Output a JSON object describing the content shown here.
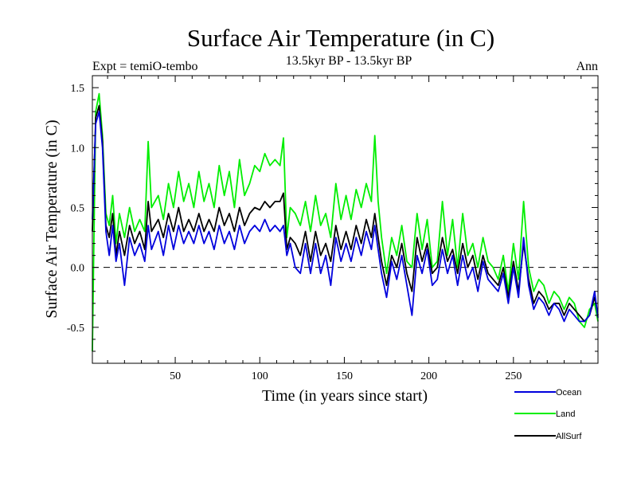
{
  "chart_data": {
    "type": "line",
    "title": "Surface Air Temperature (in C)",
    "subtitle": "13.5kyr BP - 13.5kyr BP",
    "left_note": "Expt = temiO-tembo",
    "right_note": "Ann",
    "xlabel": "Time (in years since start)",
    "ylabel": "Surface Air Temperature (in C)",
    "xlim": [
      1,
      300
    ],
    "ylim": [
      -0.8,
      1.6
    ],
    "xticks": [
      50,
      100,
      150,
      200,
      250
    ],
    "yticks": [
      -0.5,
      0.0,
      0.5,
      1.0,
      1.5
    ],
    "ytick_labels": [
      "-0.5",
      "0.0",
      "0.5",
      "1.0",
      "1.5"
    ],
    "zero_line": 0,
    "legend_position": "bottom-right",
    "series": [
      {
        "name": "Land",
        "color": "#00ee00",
        "x": [
          1,
          3,
          5,
          7,
          9,
          11,
          13,
          15,
          17,
          20,
          23,
          26,
          29,
          32,
          34,
          36,
          40,
          43,
          46,
          49,
          52,
          55,
          58,
          61,
          64,
          67,
          70,
          73,
          76,
          79,
          82,
          85,
          88,
          91,
          94,
          97,
          100,
          103,
          106,
          109,
          112,
          114,
          116,
          118,
          121,
          124,
          127,
          130,
          133,
          136,
          139,
          142,
          145,
          148,
          151,
          154,
          157,
          160,
          163,
          166,
          168,
          170,
          172,
          175,
          178,
          181,
          184,
          187,
          190,
          193,
          196,
          199,
          202,
          205,
          208,
          211,
          214,
          217,
          220,
          223,
          226,
          229,
          232,
          235,
          238,
          241,
          244,
          247,
          250,
          253,
          256,
          259,
          262,
          265,
          268,
          271,
          274,
          277,
          280,
          283,
          286,
          289,
          292,
          295,
          298,
          300
        ],
        "y": [
          -0.7,
          1.3,
          1.45,
          1.1,
          0.45,
          0.35,
          0.6,
          0.2,
          0.45,
          0.25,
          0.5,
          0.3,
          0.4,
          0.3,
          1.05,
          0.5,
          0.6,
          0.4,
          0.7,
          0.5,
          0.8,
          0.55,
          0.7,
          0.5,
          0.8,
          0.55,
          0.7,
          0.5,
          0.85,
          0.6,
          0.8,
          0.5,
          0.9,
          0.6,
          0.7,
          0.85,
          0.8,
          0.95,
          0.85,
          0.9,
          0.85,
          1.08,
          0.25,
          0.5,
          0.45,
          0.35,
          0.55,
          0.3,
          0.6,
          0.35,
          0.45,
          0.25,
          0.7,
          0.4,
          0.6,
          0.4,
          0.65,
          0.5,
          0.7,
          0.55,
          1.1,
          0.55,
          0.25,
          -0.05,
          0.25,
          0.1,
          0.35,
          0.05,
          0.0,
          0.45,
          0.15,
          0.4,
          0.0,
          0.05,
          0.55,
          0.1,
          0.4,
          0.0,
          0.45,
          0.1,
          0.2,
          0.0,
          0.25,
          0.05,
          0.0,
          -0.1,
          0.1,
          -0.2,
          0.2,
          -0.1,
          0.55,
          0.0,
          -0.2,
          -0.1,
          -0.15,
          -0.3,
          -0.2,
          -0.25,
          -0.35,
          -0.25,
          -0.3,
          -0.45,
          -0.5,
          -0.35,
          -0.3,
          -0.45
        ]
      },
      {
        "name": "AllSurf",
        "color": "#000000",
        "x": [
          1,
          3,
          5,
          7,
          9,
          11,
          13,
          15,
          17,
          20,
          23,
          26,
          29,
          32,
          34,
          36,
          40,
          43,
          46,
          49,
          52,
          55,
          58,
          61,
          64,
          67,
          70,
          73,
          76,
          79,
          82,
          85,
          88,
          91,
          94,
          97,
          100,
          103,
          106,
          109,
          112,
          114,
          116,
          118,
          121,
          124,
          127,
          130,
          133,
          136,
          139,
          142,
          145,
          148,
          151,
          154,
          157,
          160,
          163,
          166,
          168,
          170,
          172,
          175,
          178,
          181,
          184,
          187,
          190,
          193,
          196,
          199,
          202,
          205,
          208,
          211,
          214,
          217,
          220,
          223,
          226,
          229,
          232,
          235,
          238,
          241,
          244,
          247,
          250,
          253,
          256,
          259,
          262,
          265,
          268,
          271,
          274,
          277,
          280,
          283,
          286,
          289,
          292,
          295,
          298,
          300
        ],
        "y": [
          0.3,
          1.25,
          1.35,
          1.05,
          0.35,
          0.25,
          0.45,
          0.1,
          0.3,
          0.1,
          0.35,
          0.2,
          0.3,
          0.15,
          0.55,
          0.3,
          0.4,
          0.25,
          0.45,
          0.3,
          0.5,
          0.3,
          0.4,
          0.3,
          0.45,
          0.3,
          0.4,
          0.3,
          0.5,
          0.35,
          0.45,
          0.3,
          0.5,
          0.35,
          0.45,
          0.5,
          0.48,
          0.55,
          0.5,
          0.55,
          0.55,
          0.62,
          0.15,
          0.25,
          0.2,
          0.1,
          0.3,
          0.05,
          0.3,
          0.1,
          0.2,
          0.05,
          0.35,
          0.15,
          0.3,
          0.15,
          0.35,
          0.2,
          0.4,
          0.25,
          0.45,
          0.25,
          0.05,
          -0.15,
          0.1,
          0.0,
          0.2,
          -0.05,
          -0.2,
          0.25,
          0.05,
          0.2,
          -0.05,
          0.0,
          0.25,
          0.05,
          0.15,
          -0.05,
          0.2,
          0.0,
          0.1,
          -0.1,
          0.1,
          -0.05,
          -0.1,
          -0.15,
          0.0,
          -0.25,
          0.05,
          -0.2,
          0.2,
          -0.1,
          -0.3,
          -0.2,
          -0.25,
          -0.35,
          -0.3,
          -0.3,
          -0.4,
          -0.3,
          -0.35,
          -0.4,
          -0.45,
          -0.4,
          -0.25,
          -0.4
        ]
      },
      {
        "name": "Ocean",
        "color": "#0000dd",
        "x": [
          1,
          3,
          5,
          7,
          9,
          11,
          13,
          15,
          17,
          20,
          23,
          26,
          29,
          32,
          34,
          36,
          40,
          43,
          46,
          49,
          52,
          55,
          58,
          61,
          64,
          67,
          70,
          73,
          76,
          79,
          82,
          85,
          88,
          91,
          94,
          97,
          100,
          103,
          106,
          109,
          112,
          114,
          116,
          118,
          121,
          124,
          127,
          130,
          133,
          136,
          139,
          142,
          145,
          148,
          151,
          154,
          157,
          160,
          163,
          166,
          168,
          170,
          172,
          175,
          178,
          181,
          184,
          187,
          190,
          193,
          196,
          199,
          202,
          205,
          208,
          211,
          214,
          217,
          220,
          223,
          226,
          229,
          232,
          235,
          238,
          241,
          244,
          247,
          250,
          253,
          256,
          259,
          262,
          265,
          268,
          271,
          274,
          277,
          280,
          283,
          286,
          289,
          292,
          295,
          298,
          300
        ],
        "y": [
          0.4,
          1.2,
          1.3,
          1.0,
          0.3,
          0.1,
          0.35,
          0.05,
          0.2,
          -0.15,
          0.25,
          0.1,
          0.2,
          0.05,
          0.35,
          0.15,
          0.3,
          0.1,
          0.35,
          0.15,
          0.35,
          0.2,
          0.3,
          0.2,
          0.35,
          0.2,
          0.3,
          0.15,
          0.35,
          0.2,
          0.3,
          0.15,
          0.35,
          0.2,
          0.3,
          0.35,
          0.3,
          0.4,
          0.3,
          0.35,
          0.3,
          0.35,
          0.1,
          0.2,
          0.0,
          -0.05,
          0.2,
          -0.05,
          0.2,
          -0.05,
          0.1,
          -0.15,
          0.25,
          0.05,
          0.2,
          0.05,
          0.25,
          0.1,
          0.3,
          0.15,
          0.35,
          0.15,
          -0.05,
          -0.25,
          0.05,
          -0.1,
          0.1,
          -0.15,
          -0.4,
          0.1,
          -0.05,
          0.15,
          -0.15,
          -0.1,
          0.15,
          -0.05,
          0.1,
          -0.15,
          0.1,
          -0.1,
          0.0,
          -0.2,
          0.05,
          -0.1,
          -0.15,
          -0.2,
          -0.05,
          -0.3,
          0.0,
          -0.25,
          0.25,
          -0.15,
          -0.35,
          -0.25,
          -0.3,
          -0.4,
          -0.3,
          -0.35,
          -0.45,
          -0.35,
          -0.4,
          -0.45,
          -0.45,
          -0.4,
          -0.2,
          -0.42
        ]
      }
    ],
    "legend": [
      {
        "name": "Ocean",
        "color": "#0000dd"
      },
      {
        "name": "Land",
        "color": "#00ee00"
      },
      {
        "name": "AllSurf",
        "color": "#000000"
      }
    ]
  }
}
